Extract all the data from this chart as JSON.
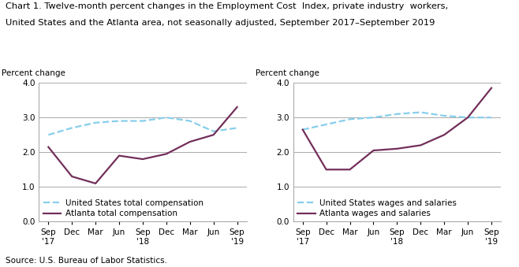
{
  "title_line1": "Chart 1. Twelve-month percent changes in the Employment Cost  Index, private industry  workers,",
  "title_line2": "United States and the Atlanta area, not seasonally adjusted, September 2017–September 2019",
  "source": "Source: U.S. Bureau of Labor Statistics.",
  "x_labels": [
    "Sep\n'17",
    "Dec",
    "Mar",
    "Jun",
    "Sep\n'18",
    "Dec",
    "Mar",
    "Jun",
    "Sep\n'19"
  ],
  "left_ylabel": "Percent change",
  "right_ylabel": "Percent change",
  "left_us_label": "United States total compensation",
  "left_atl_label": "Atlanta total compensation",
  "right_us_label": "United States wages and salaries",
  "right_atl_label": "Atlanta wages and salaries",
  "left_us_values": [
    2.5,
    2.7,
    2.85,
    2.9,
    2.9,
    3.0,
    2.9,
    2.6,
    2.7
  ],
  "left_atl_values": [
    2.15,
    1.3,
    1.1,
    1.9,
    1.8,
    1.95,
    2.3,
    2.5,
    3.3
  ],
  "right_us_values": [
    2.65,
    2.8,
    2.95,
    3.0,
    3.1,
    3.15,
    3.05,
    3.0,
    3.0
  ],
  "right_atl_values": [
    2.65,
    1.5,
    1.5,
    2.05,
    2.1,
    2.2,
    2.5,
    3.0,
    3.85
  ],
  "us_color": "#87CEEB",
  "atl_color": "#722F5A",
  "ylim": [
    0.0,
    4.0
  ],
  "yticks": [
    0.0,
    1.0,
    2.0,
    3.0,
    4.0
  ],
  "bg_color": "#FFFFFF",
  "grid_color": "#AAAAAA",
  "title_fontsize": 8.2,
  "label_fontsize": 7.5,
  "tick_fontsize": 7.5,
  "legend_fontsize": 7.5,
  "source_fontsize": 7.5
}
